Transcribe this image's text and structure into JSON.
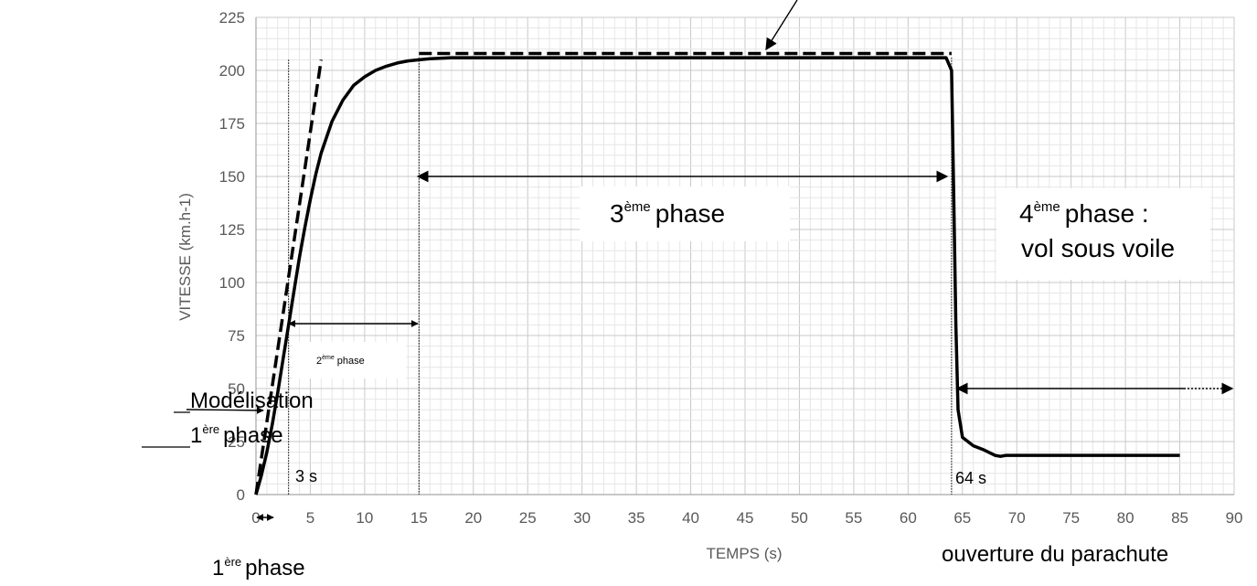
{
  "chart_data": {
    "type": "line",
    "xlabel": "TEMPS (s)",
    "ylabel": "VITESSE (km.h-1)",
    "xlim": [
      0,
      90
    ],
    "ylim": [
      0,
      225
    ],
    "x_ticks": [
      0,
      5,
      10,
      15,
      20,
      25,
      30,
      35,
      40,
      45,
      50,
      55,
      60,
      65,
      70,
      75,
      80,
      85,
      90
    ],
    "y_ticks": [
      0,
      25,
      50,
      75,
      100,
      125,
      150,
      175,
      200,
      225
    ],
    "grid": true,
    "series": [
      {
        "x": [
          0,
          0.5,
          1,
          1.5,
          2,
          2.5,
          3,
          3.5,
          4,
          4.5,
          5,
          5.5,
          6,
          7,
          8,
          9,
          10,
          11,
          12,
          13,
          14,
          15,
          16,
          18,
          20,
          25,
          30,
          40,
          50,
          60,
          63.5,
          64,
          64.2,
          64.4,
          64.6,
          65,
          66,
          67,
          68,
          68.5,
          69,
          70,
          75,
          80,
          85
        ],
        "y": [
          0,
          9,
          20,
          33,
          48,
          64,
          80,
          96,
          112,
          126,
          139,
          151,
          161,
          176,
          186,
          193,
          197,
          200,
          202,
          203.5,
          204.5,
          205,
          205.5,
          206,
          206,
          206,
          206,
          206,
          206,
          206,
          206,
          200,
          140,
          80,
          40,
          27,
          23,
          21,
          18.5,
          18,
          18.5,
          18.5,
          18.5,
          18.5,
          18.5
        ]
      }
    ],
    "model_lines": [
      {
        "x": [
          0,
          6
        ],
        "y": [
          0,
          205
        ]
      },
      {
        "x": [
          15,
          64
        ],
        "y": [
          208,
          208
        ]
      }
    ],
    "vertical_markers": [
      3,
      15,
      64
    ],
    "annotations": {
      "model_phase1_l1": "Modélisation",
      "model_phase1_num": "1",
      "model_phase1_sup": "ère",
      "model_phase1_word": "phase",
      "phase1_num": "1",
      "phase1_sup": "ère",
      "phase1_word": "phase",
      "phase2_num": "2",
      "phase2_sup": "ème",
      "phase2_word": "phase",
      "phase3_num": "3",
      "phase3_sup": "ème",
      "phase3_word": "phase",
      "phase4_num": "4",
      "phase4_sup": "ème",
      "phase4_word": "phase :",
      "phase4_l2": "vol sous voile",
      "t3": "3 s",
      "t64": "64 s",
      "parachute": "ouverture du parachute"
    }
  }
}
